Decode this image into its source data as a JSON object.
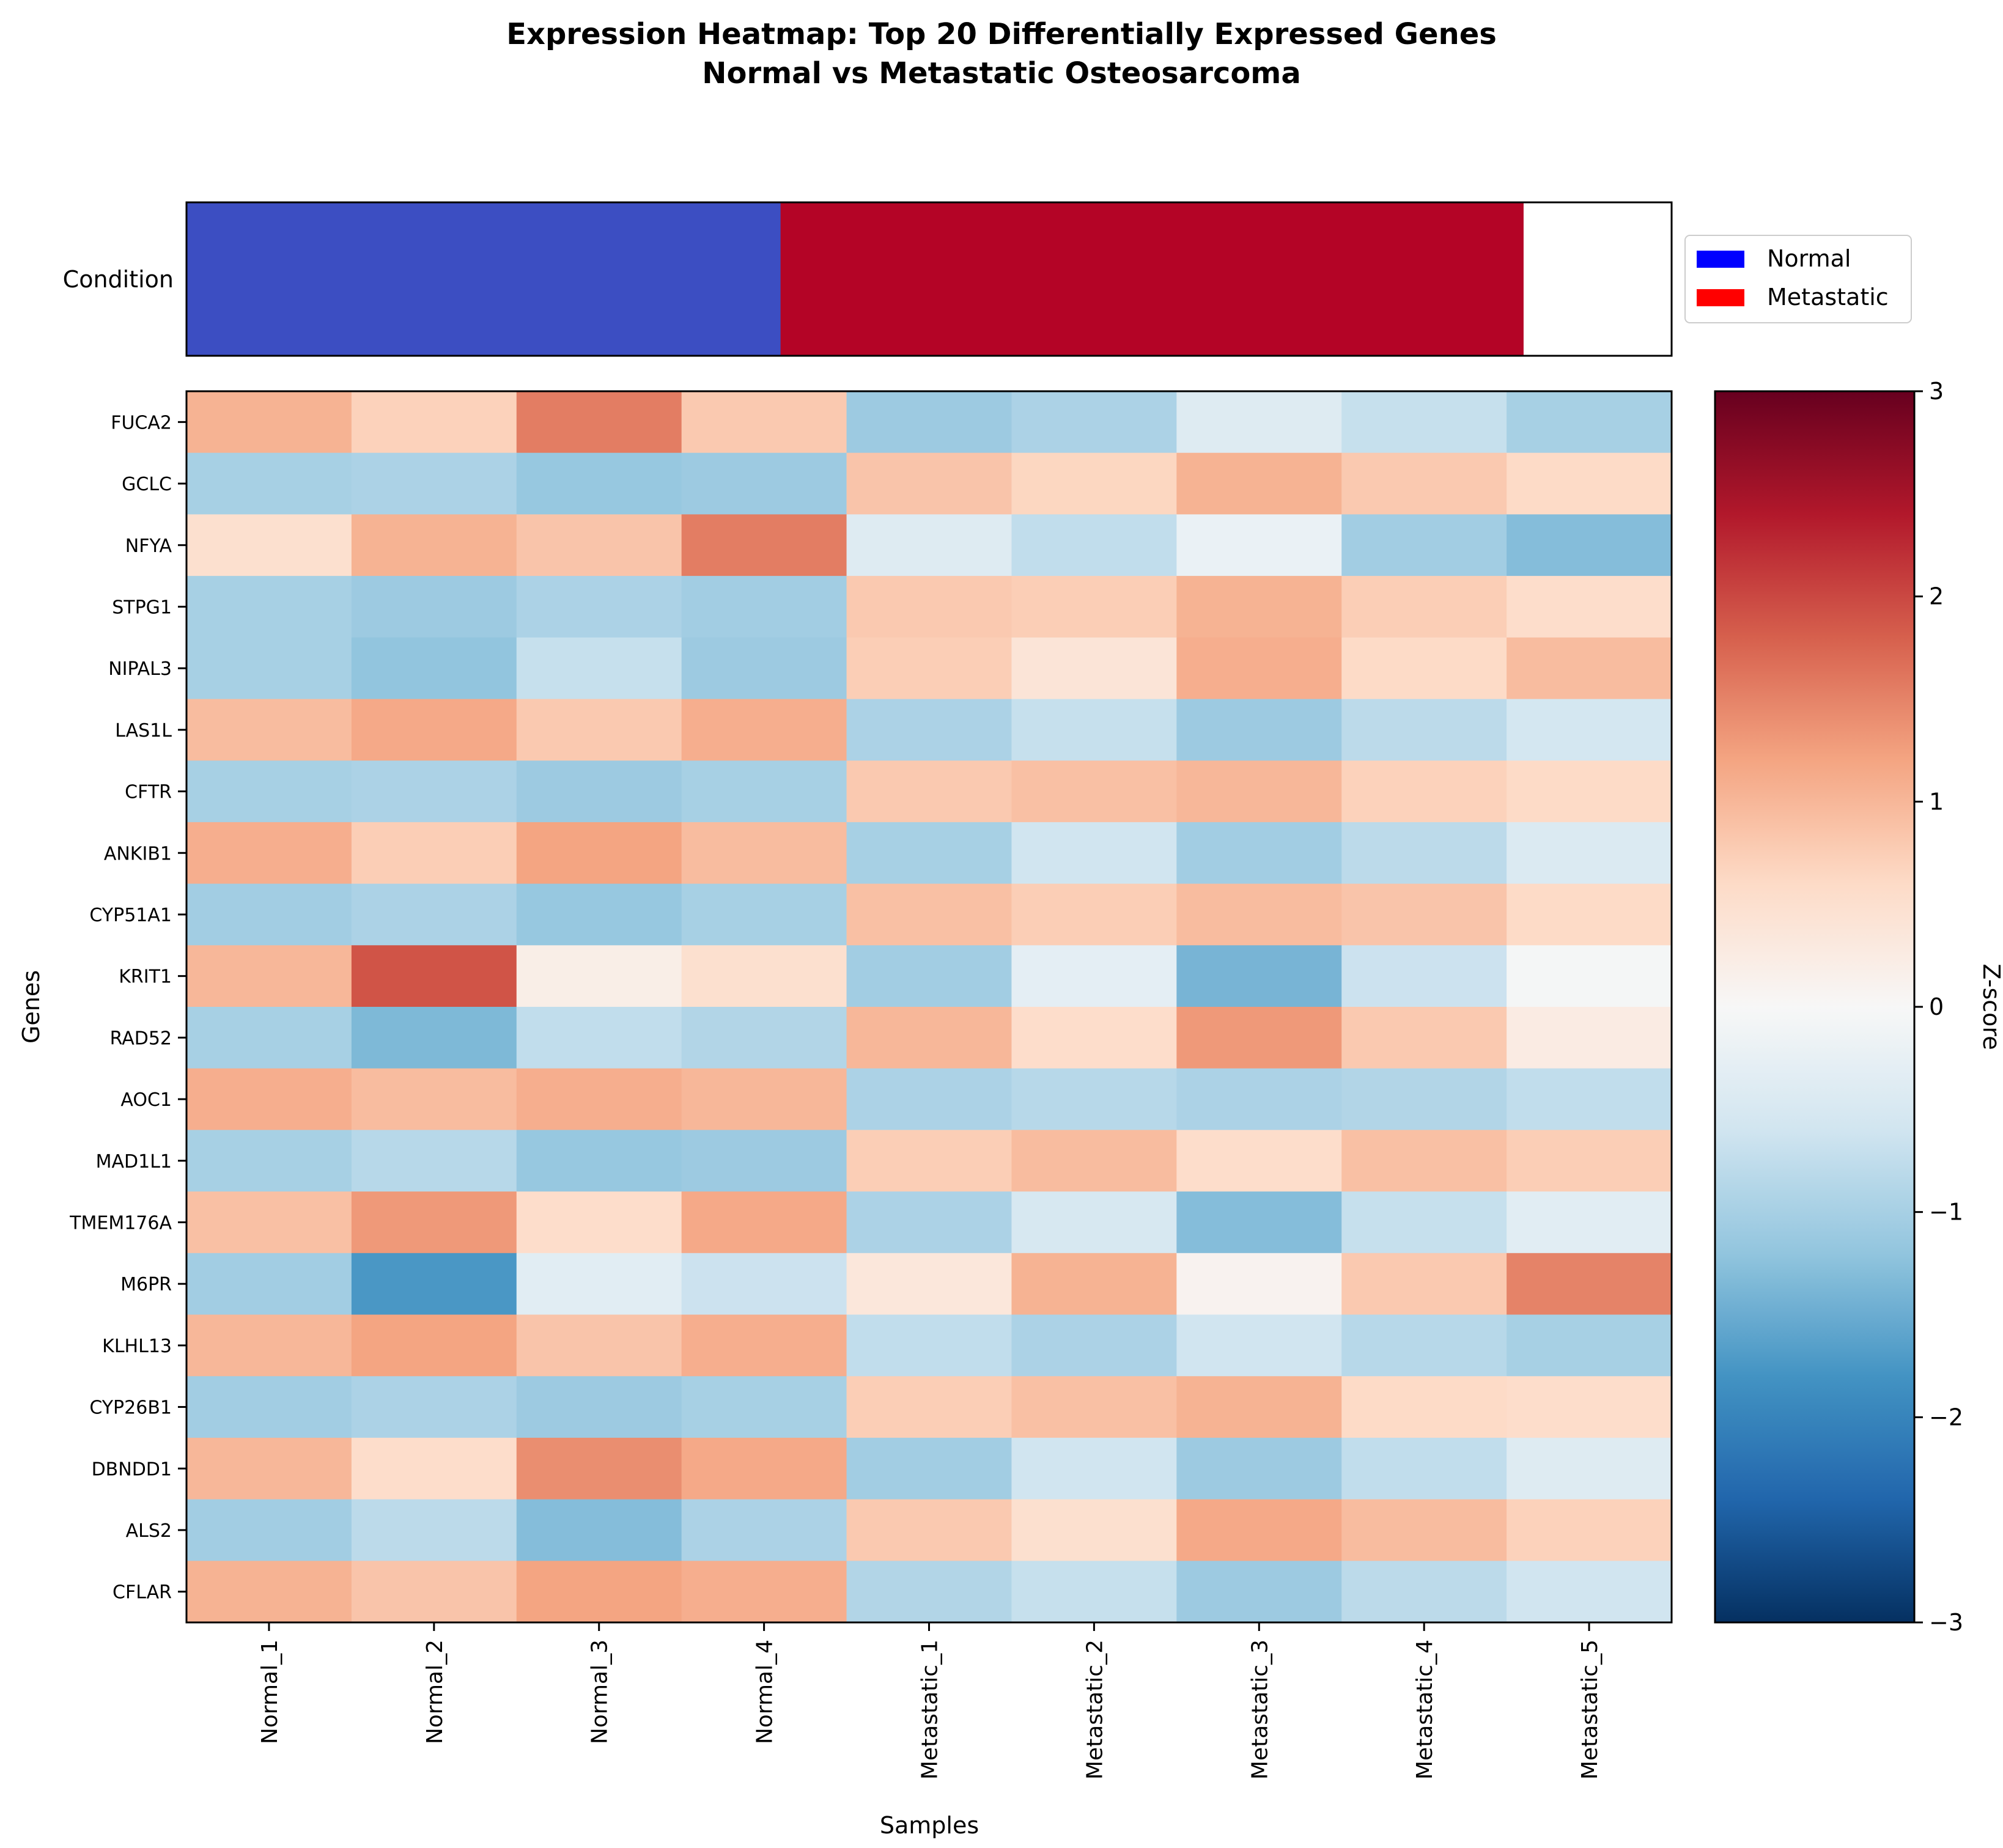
{
  "chart_data": {
    "type": "heatmap",
    "title_line1": "Expression Heatmap: Top 20 Differentially Expressed Genes",
    "title_line2": "Normal vs Metastatic Osteosarcoma",
    "xlabel": "Samples",
    "ylabel": "Genes",
    "colorbar_label": "Z-score",
    "colorbar_ticks": [
      "−3",
      "−2",
      "−1",
      "0",
      "1",
      "2",
      "3"
    ],
    "colorbar_values": [
      -3,
      -2,
      -1,
      0,
      1,
      2,
      3
    ],
    "zlim": [
      -3,
      3
    ],
    "colormap": "RdBu_r",
    "samples": [
      "Normal_1",
      "Normal_2",
      "Normal_3",
      "Normal_4",
      "Metastatic_1",
      "Metastatic_2",
      "Metastatic_3",
      "Metastatic_4",
      "Metastatic_5"
    ],
    "genes": [
      "FUCA2",
      "GCLC",
      "NFYA",
      "STPG1",
      "NIPAL3",
      "LAS1L",
      "CFTR",
      "ANKIB1",
      "CYP51A1",
      "KRIT1",
      "RAD52",
      "AOC1",
      "MAD1L1",
      "TMEM176A",
      "M6PR",
      "KLHL13",
      "CYP26B1",
      "DBNDD1",
      "ALS2",
      "CFLAR"
    ],
    "values": [
      [
        1.05,
        0.7,
        1.55,
        0.8,
        -1.1,
        -0.95,
        -0.4,
        -0.7,
        -1.0
      ],
      [
        -1.0,
        -0.95,
        -1.15,
        -1.1,
        0.85,
        0.65,
        1.05,
        0.8,
        0.6
      ],
      [
        0.5,
        1.05,
        0.85,
        1.55,
        -0.4,
        -0.75,
        -0.2,
        -1.05,
        -1.3
      ],
      [
        -1.0,
        -1.1,
        -0.95,
        -1.05,
        0.8,
        0.75,
        1.05,
        0.75,
        0.55
      ],
      [
        -1.0,
        -1.2,
        -0.7,
        -1.1,
        0.75,
        0.4,
        1.1,
        0.6,
        0.95
      ],
      [
        0.95,
        1.15,
        0.8,
        1.1,
        -0.95,
        -0.7,
        -1.1,
        -0.8,
        -0.55
      ],
      [
        -1.0,
        -0.95,
        -1.1,
        -1.0,
        0.8,
        0.9,
        1.0,
        0.7,
        0.6
      ],
      [
        1.1,
        0.75,
        1.2,
        0.95,
        -1.0,
        -0.6,
        -1.05,
        -0.8,
        -0.45
      ],
      [
        -1.05,
        -0.95,
        -1.15,
        -1.0,
        0.9,
        0.75,
        0.95,
        0.85,
        0.6
      ],
      [
        1.0,
        1.9,
        0.2,
        0.5,
        -1.05,
        -0.3,
        -1.4,
        -0.65,
        -0.05
      ],
      [
        -1.0,
        -1.35,
        -0.75,
        -0.9,
        1.0,
        0.55,
        1.3,
        0.8,
        0.25
      ],
      [
        1.1,
        0.95,
        1.1,
        1.0,
        -0.95,
        -0.85,
        -0.95,
        -0.9,
        -0.75
      ],
      [
        -1.0,
        -0.85,
        -1.15,
        -1.1,
        0.75,
        0.95,
        0.55,
        0.9,
        0.75
      ],
      [
        0.9,
        1.3,
        0.55,
        1.15,
        -0.95,
        -0.5,
        -1.3,
        -0.7,
        -0.35
      ],
      [
        -1.05,
        -1.75,
        -0.35,
        -0.65,
        0.35,
        1.05,
        0.1,
        0.8,
        1.5
      ],
      [
        1.0,
        1.2,
        0.85,
        1.1,
        -0.75,
        -0.95,
        -0.6,
        -0.85,
        -1.0
      ],
      [
        -1.05,
        -0.95,
        -1.1,
        -1.0,
        0.75,
        0.9,
        1.05,
        0.6,
        0.55
      ],
      [
        1.0,
        0.55,
        1.4,
        1.15,
        -1.05,
        -0.6,
        -1.1,
        -0.75,
        -0.4
      ],
      [
        -1.05,
        -0.8,
        -1.3,
        -0.95,
        0.8,
        0.5,
        1.15,
        0.95,
        0.7
      ],
      [
        1.05,
        0.85,
        1.2,
        1.1,
        -0.9,
        -0.7,
        -1.1,
        -0.8,
        -0.6
      ]
    ],
    "condition": {
      "label": "Condition",
      "groups": [
        {
          "name": "Normal",
          "color": "#3c4ec2",
          "legend_color": "#0000ff"
        },
        {
          "name": "Metastatic",
          "color": "#b40426",
          "legend_color": "#ff0000"
        }
      ],
      "sample_groups": [
        0,
        0,
        0,
        0,
        1,
        1,
        1,
        1,
        1
      ]
    },
    "grid": false,
    "legend_position": "right of condition bar"
  }
}
